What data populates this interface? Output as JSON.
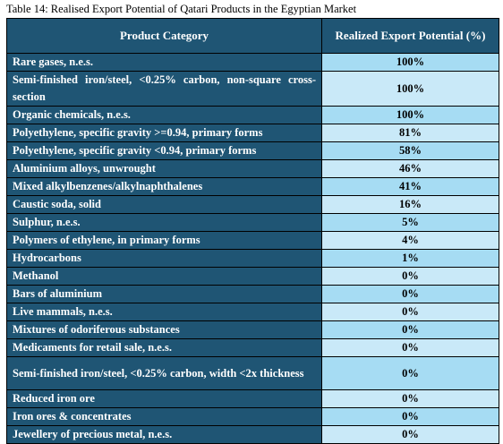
{
  "caption": "Table 14: Realised Export Potential of Qatari Products in the Egyptian Market",
  "table": {
    "headers": [
      "Product Category",
      "Realized Export Potential (%)"
    ],
    "rows": [
      {
        "category": "Rare gases, n.e.s.",
        "value": "100%"
      },
      {
        "category": "Semi-finished iron/steel, <0.25% carbon, non-square cross-section",
        "value": "100%"
      },
      {
        "category": "Organic chemicals, n.e.s.",
        "value": "100%"
      },
      {
        "category": "Polyethylene, specific gravity >=0.94, primary forms",
        "value": "81%"
      },
      {
        "category": "Polyethylene, specific gravity <0.94, primary forms",
        "value": "58%"
      },
      {
        "category": "Aluminium alloys, unwrought",
        "value": "46%"
      },
      {
        "category": "Mixed alkylbenzenes/alkylnaphthalenes",
        "value": "41%"
      },
      {
        "category": "Caustic soda, solid",
        "value": "16%"
      },
      {
        "category": "Sulphur, n.e.s.",
        "value": "5%"
      },
      {
        "category": "Polymers of ethylene, in primary forms",
        "value": "4%"
      },
      {
        "category": "Hydrocarbons",
        "value": "1%"
      },
      {
        "category": "Methanol",
        "value": "0%"
      },
      {
        "category": "Bars of aluminium",
        "value": "0%"
      },
      {
        "category": "Live mammals, n.e.s.",
        "value": "0%"
      },
      {
        "category": "Mixtures of odoriferous substances",
        "value": "0%"
      },
      {
        "category": "Medicaments for retail sale, n.e.s.",
        "value": "0%"
      },
      {
        "category": "Semi-finished iron/steel, <0.25% carbon, width <2x thickness",
        "value": "0%"
      },
      {
        "category": "Reduced iron ore",
        "value": "0%"
      },
      {
        "category": "Iron ores & concentrates",
        "value": "0%"
      },
      {
        "category": "Jewellery of precious metal, n.e.s.",
        "value": "0%"
      }
    ]
  },
  "colors": {
    "header_bg": "#1f5574",
    "value_row_even": "#a6dcf3",
    "value_row_odd": "#c9e9f8"
  }
}
